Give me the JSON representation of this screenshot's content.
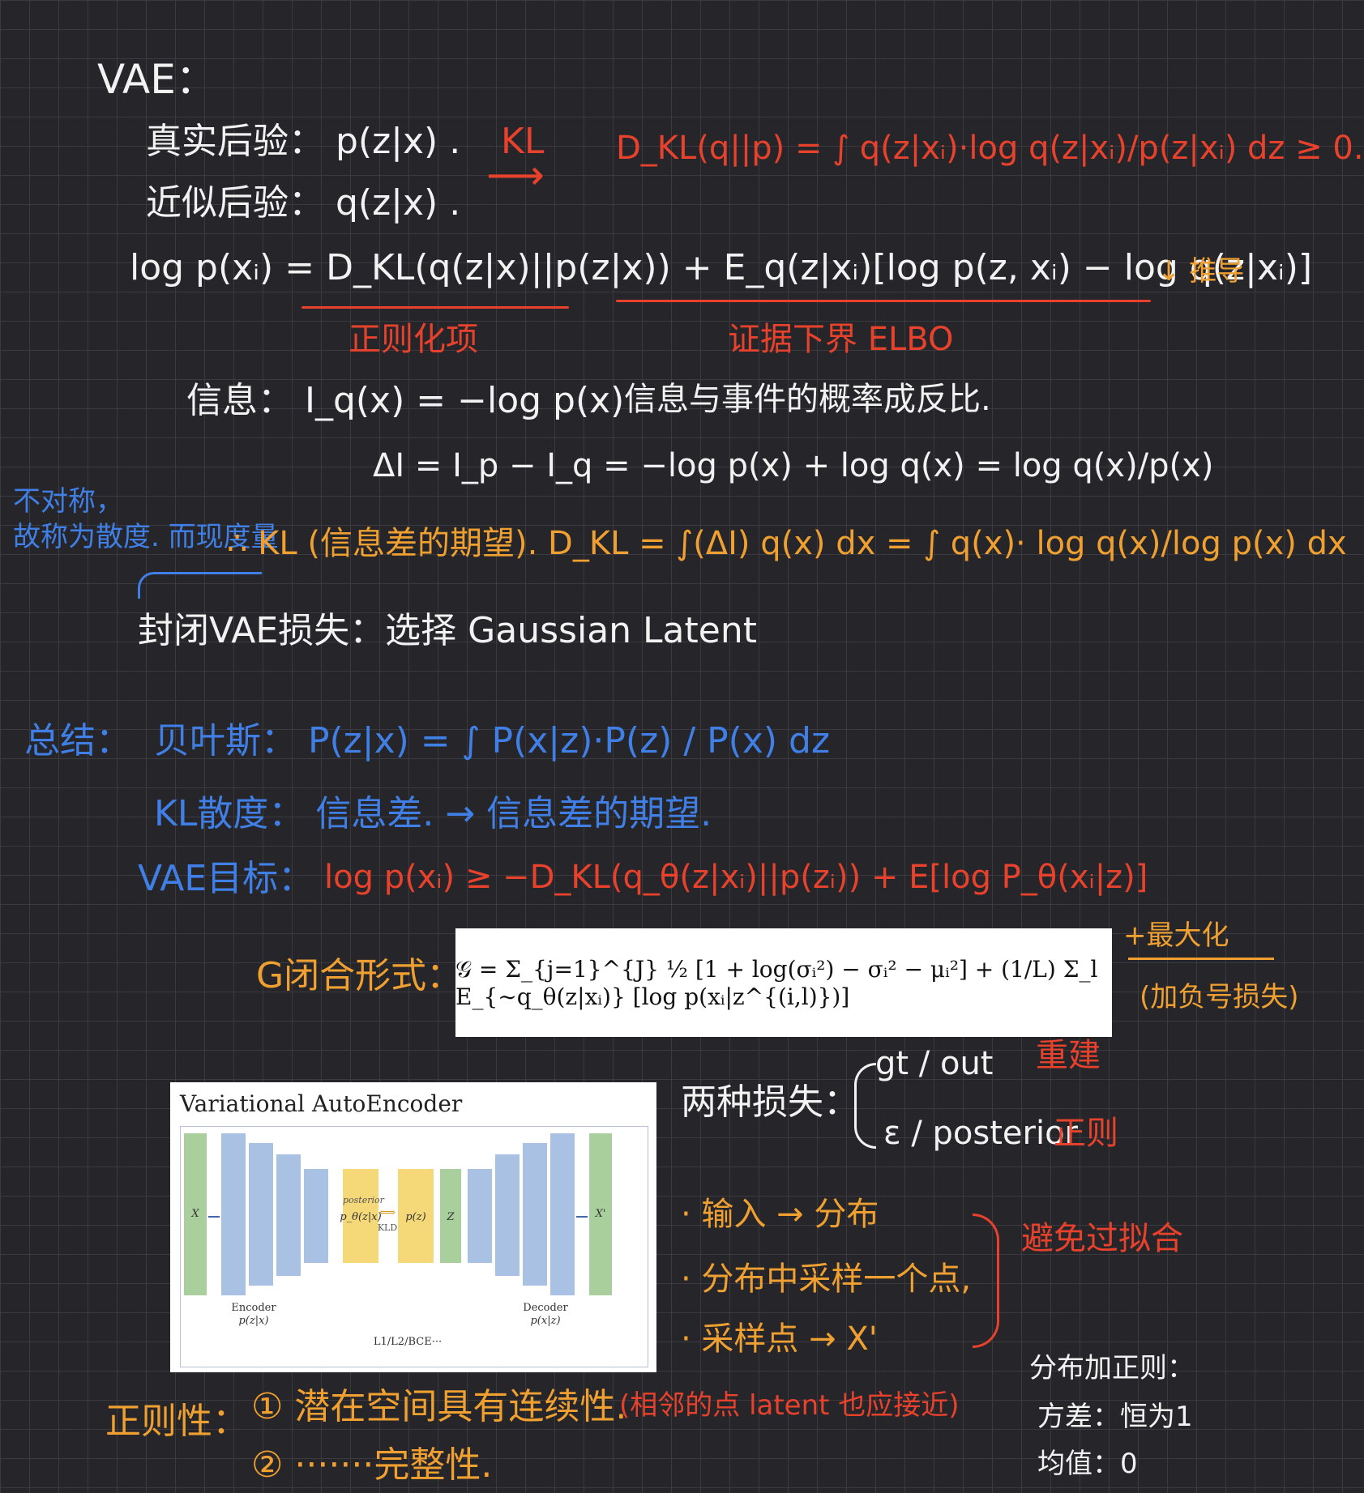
{
  "heading": "VAE：",
  "true_posterior": "真实后验： p(z|x) .",
  "approx_posterior": "近似后验： q(z|x) .",
  "kl_arrow_label": "KL",
  "kl_def": "D_KL(q||p) = ∫ q(z|xᵢ)·log q(z|xᵢ)/p(z|xᵢ) dz ≥ 0.",
  "log_likelihood": "log p(xᵢ) = D_KL(q(z|x)||p(z|x)) + E_q(z|xᵢ)[log p(z, xᵢ) − log q(z|xᵢ)]",
  "regularization_label": "正则化项",
  "elbo_label": "证据下界 ELBO",
  "deduction_label": "↓ 推导",
  "info_line": "信息： I_q(x) = −log p(x)",
  "info_note": "信息与事件的概率成反比.",
  "delta_info": "ΔI = I_p − I_q = −log p(x) + log q(x) = log q(x)/p(x)",
  "asym_note_1": "不对称，",
  "asym_note_2": "故称为散度. 而现度量",
  "kl_expect": "∴ KL (信息差的期望). D_KL = ∫(ΔI) q(x) dx = ∫ q(x)· log q(x)/log p(x) dx",
  "vae_loss": "封闭VAE损失：选择 Gaussian Latent",
  "summary_label": "总结：",
  "bayes": "贝叶斯： P(z|x) = ∫ P(x|z)·P(z) / P(x) dz",
  "kl_div": "KL散度： 信息差. → 信息差的期望.",
  "vae_goal_label": "VAE目标：",
  "vae_goal": "log p(xᵢ) ≥ −D_KL(q_θ(z|xᵢ)||p(zᵢ)) + E[log P_θ(xᵢ|z)]",
  "g_form": "G闭合形式：",
  "formula": "𝒢 = Σ_{j=1}^{J} ½ [1 + log(σᵢ²) − σᵢ² − μᵢ²] + (1/L) Σ_l E_{∼q_θ(z|xᵢ)} [log p(xᵢ|z^{(i,l)})]",
  "max_note_1": "+最大化",
  "max_note_2": "(加负号损失)",
  "two_losses": "两种损失：",
  "loss_gt": "gt / out",
  "loss_gt_tag": "重建",
  "loss_post": "ε / posterior",
  "loss_post_tag": "正则",
  "steps": [
    "· 输入 → 分布",
    "· 分布中采样一个点,",
    "· 采样点 → X'"
  ],
  "steps_note": "避免过拟合",
  "diagram": {
    "title": "Variational AutoEncoder",
    "x_label": "X",
    "x_prime_label": "X'",
    "posterior_label": "posterior",
    "p_theta": "p_θ(z|x)",
    "kld": "KLD",
    "p_z": "p(z)",
    "z_label": "Z",
    "encoder": "Encoder",
    "encoder_sub": "p(z|x)",
    "decoder": "Decoder",
    "decoder_sub": "p(x|z)",
    "loss_label": "L1/L2/BCE···"
  },
  "regular_label": "正则性：",
  "regular_1": "① 潜在空间具有连续性.",
  "regular_1_note": "(相邻的点 latent 也应接近)",
  "regular_2": "② ·······完整性.",
  "dist_title": "分布加正则：",
  "dist_var": "方差：恒为1",
  "dist_mean": "均值：0"
}
